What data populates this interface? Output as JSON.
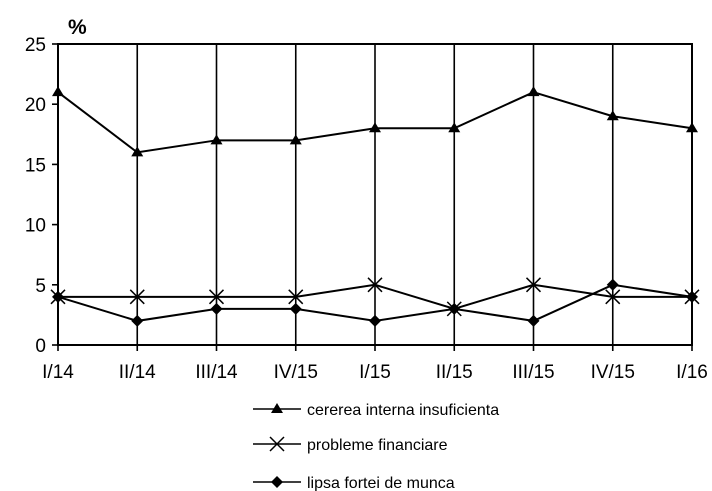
{
  "chart_data": {
    "type": "line",
    "unit_label": "%",
    "categories": [
      "I/14",
      "II/14",
      "III/14",
      "IV/15",
      "I/15",
      "II/15",
      "III/15",
      "IV/15",
      "I/16"
    ],
    "ylim": [
      0,
      25
    ],
    "yticks": [
      0,
      5,
      10,
      15,
      20,
      25
    ],
    "grid": "vertical",
    "legend_position": "bottom",
    "series": [
      {
        "name": "cererea interna insuficienta",
        "marker": "triangle",
        "values": [
          21,
          16,
          17,
          17,
          18,
          18,
          21,
          19,
          18
        ]
      },
      {
        "name": "probleme financiare",
        "marker": "x",
        "values": [
          4,
          4,
          4,
          4,
          5,
          3,
          5,
          4,
          4
        ]
      },
      {
        "name": "lipsa fortei de munca",
        "marker": "diamond",
        "values": [
          4,
          2,
          3,
          3,
          2,
          3,
          2,
          5,
          4
        ]
      }
    ],
    "colors": {
      "line": "#000000",
      "background": "#ffffff"
    }
  }
}
